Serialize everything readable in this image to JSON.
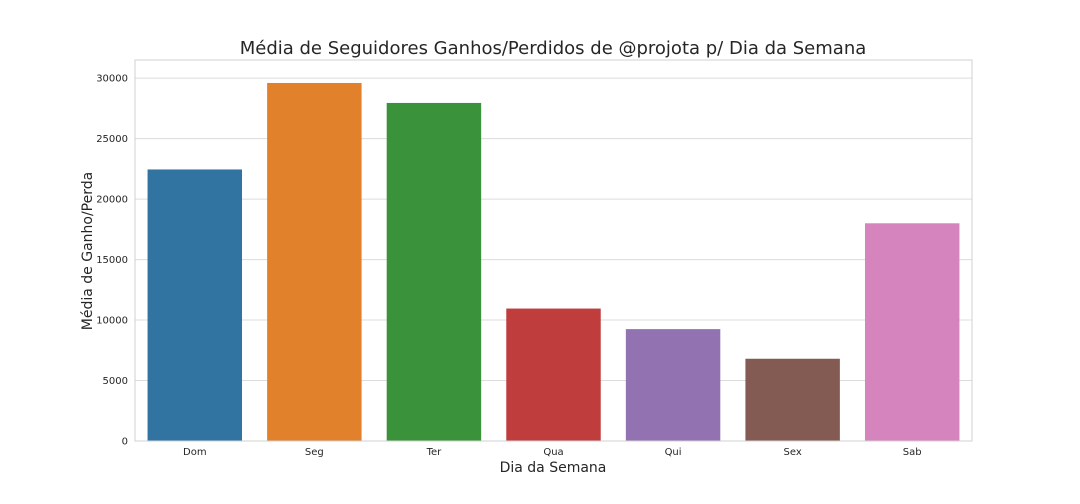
{
  "chart_data": {
    "type": "bar",
    "title": "Média de Seguidores Ganhos/Perdidos de @projota p/ Dia da Semana",
    "xlabel": "Dia da Semana",
    "ylabel": "Média de Ganho/Perda",
    "categories": [
      "Dom",
      "Seg",
      "Ter",
      "Qua",
      "Qui",
      "Sex",
      "Sab"
    ],
    "values": [
      22450,
      29600,
      27950,
      10950,
      9250,
      6800,
      18000
    ],
    "colors": [
      "#3274a1",
      "#e1812c",
      "#3a923a",
      "#c03d3e",
      "#9372b2",
      "#845b53",
      "#d584bd"
    ],
    "ylim": [
      0,
      31500
    ],
    "yticks": [
      0,
      5000,
      10000,
      15000,
      20000,
      25000,
      30000
    ],
    "ytick_labels": [
      "0",
      "5000",
      "10000",
      "15000",
      "20000",
      "25000",
      "30000"
    ],
    "grid": true,
    "grid_axis": "y"
  }
}
